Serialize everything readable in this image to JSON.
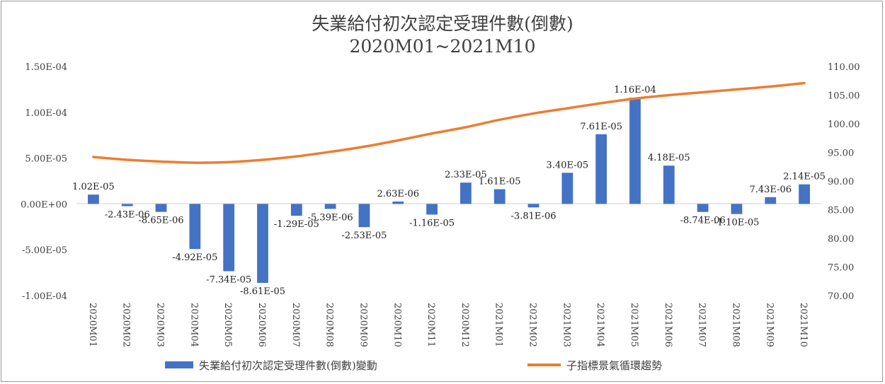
{
  "chart_data": {
    "type": "bar",
    "title": "失業給付初次認定受理件數(倒數)",
    "subtitle": "2020M01~2021M10",
    "categories": [
      "2020M01",
      "2020M02",
      "2020M03",
      "2020M04",
      "2020M05",
      "2020M06",
      "2020M07",
      "2020M08",
      "2020M09",
      "2020M10",
      "2020M11",
      "2020M12",
      "2021M01",
      "2021M02",
      "2021M03",
      "2021M04",
      "2021M05",
      "2021M06",
      "2021M07",
      "2021M08",
      "2021M09",
      "2021M10"
    ],
    "series": [
      {
        "name": "失業給付初次認定受理件數(倒數)變動",
        "type": "bar",
        "axis": "left",
        "color": "#4472c4",
        "values": [
          1.02e-05,
          -2.43e-06,
          -8.65e-06,
          -4.92e-05,
          -7.34e-05,
          -8.61e-05,
          -1.29e-05,
          -5.39e-06,
          -2.53e-05,
          2.63e-06,
          -1.16e-05,
          2.33e-05,
          1.61e-05,
          -3.81e-06,
          3.4e-05,
          7.61e-05,
          0.000116,
          4.18e-05,
          -8.74e-06,
          -1.1e-05,
          7.43e-06,
          2.14e-05
        ],
        "data_labels": [
          "1.02E-05",
          "-2.43E-06",
          "-8.65E-06",
          "-4.92E-05",
          "-7.34E-05",
          "-8.61E-05",
          "-1.29E-05",
          "-5.39E-06",
          "-2.53E-05",
          "2.63E-06",
          "-1.16E-05",
          "2.33E-05",
          "1.61E-05",
          "-3.81E-06",
          "3.40E-05",
          "7.61E-05",
          "1.16E-04",
          "4.18E-05",
          "-8.74E-06",
          "-1.10E-05",
          "7.43E-06",
          "2.14E-05"
        ]
      },
      {
        "name": "子指標景氣循環趨勢",
        "type": "line",
        "axis": "right",
        "color": "#ed7d31",
        "values": [
          94.2,
          93.7,
          93.4,
          93.2,
          93.3,
          93.7,
          94.3,
          95.1,
          96.0,
          97.1,
          98.3,
          99.4,
          100.7,
          101.8,
          102.7,
          103.6,
          104.4,
          105.0,
          105.5,
          106.0,
          106.5,
          107.1
        ]
      }
    ],
    "y_left": {
      "min": -0.0001,
      "max": 0.00015,
      "step": 5e-05,
      "tick_labels": [
        "-1.00E-04",
        "-5.00E-05",
        "0.00E+00",
        "5.00E-05",
        "1.00E-04",
        "1.50E-04"
      ]
    },
    "y_right": {
      "min": 70,
      "max": 110,
      "step": 5,
      "tick_labels": [
        "70.00",
        "75.00",
        "80.00",
        "85.00",
        "90.00",
        "95.00",
        "100.00",
        "105.00",
        "110.00"
      ]
    },
    "grid": false,
    "legend_position": "bottom"
  }
}
